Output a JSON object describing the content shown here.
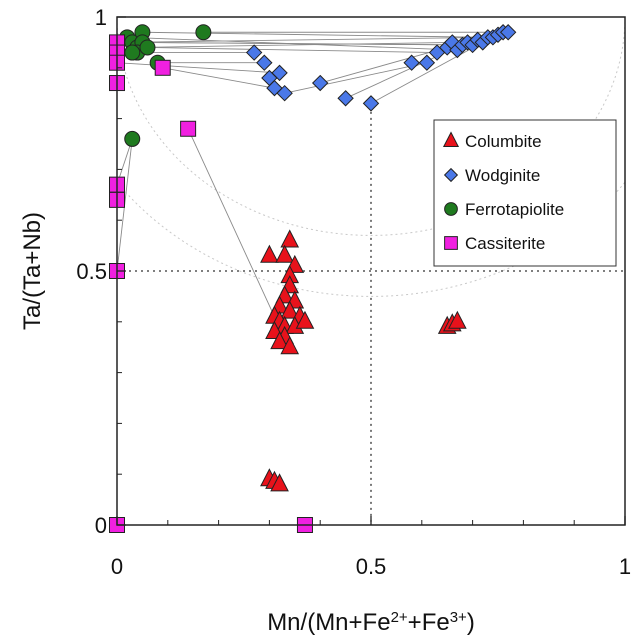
{
  "chart_data": {
    "type": "scatter",
    "xlabel": "Mn/(Mn+Fe2+Fe3+)",
    "xlabel_parts": {
      "base": "Mn/(Mn+Fe",
      "sup1": "2+",
      "mid": "+Fe",
      "sup2": "3+",
      "end": ")"
    },
    "ylabel": "Ta/(Ta+Nb)",
    "xlim": [
      0,
      1
    ],
    "ylim": [
      0,
      1
    ],
    "xticks": [
      {
        "value": 0,
        "label": "0"
      },
      {
        "value": 0.5,
        "label": "0.5"
      },
      {
        "value": 1,
        "label": "1"
      }
    ],
    "yticks": [
      {
        "value": 0,
        "label": "0"
      },
      {
        "value": 0.5,
        "label": "0.5"
      },
      {
        "value": 1,
        "label": "1"
      }
    ],
    "reference_lines": {
      "x": 0.5,
      "y": 0.5,
      "style": "dotted"
    },
    "legend_position": "right-upper",
    "legend": [
      {
        "name": "Columbite",
        "marker": "triangle",
        "color": "#e8121b"
      },
      {
        "name": "Wodginite",
        "marker": "diamond",
        "color": "#4a78e8"
      },
      {
        "name": "Ferrotapiolite",
        "marker": "circle",
        "color": "#1f7a1f"
      },
      {
        "name": "Cassiterite",
        "marker": "square",
        "color": "#f020e0"
      }
    ],
    "series": [
      {
        "name": "Columbite",
        "marker": "triangle",
        "color": "#e8121b",
        "points": [
          [
            0.3,
            0.53
          ],
          [
            0.34,
            0.56
          ],
          [
            0.33,
            0.53
          ],
          [
            0.35,
            0.51
          ],
          [
            0.34,
            0.49
          ],
          [
            0.34,
            0.47
          ],
          [
            0.33,
            0.45
          ],
          [
            0.35,
            0.44
          ],
          [
            0.32,
            0.43
          ],
          [
            0.31,
            0.41
          ],
          [
            0.34,
            0.42
          ],
          [
            0.36,
            0.41
          ],
          [
            0.32,
            0.4
          ],
          [
            0.33,
            0.39
          ],
          [
            0.35,
            0.39
          ],
          [
            0.37,
            0.4
          ],
          [
            0.31,
            0.38
          ],
          [
            0.33,
            0.37
          ],
          [
            0.32,
            0.36
          ],
          [
            0.34,
            0.35
          ],
          [
            0.3,
            0.09
          ],
          [
            0.31,
            0.085
          ],
          [
            0.32,
            0.08
          ],
          [
            0.65,
            0.39
          ],
          [
            0.66,
            0.395
          ],
          [
            0.67,
            0.4
          ]
        ]
      },
      {
        "name": "Wodginite",
        "marker": "diamond",
        "color": "#4a78e8",
        "points": [
          [
            0.27,
            0.93
          ],
          [
            0.29,
            0.91
          ],
          [
            0.3,
            0.88
          ],
          [
            0.32,
            0.89
          ],
          [
            0.31,
            0.86
          ],
          [
            0.33,
            0.85
          ],
          [
            0.4,
            0.87
          ],
          [
            0.45,
            0.84
          ],
          [
            0.5,
            0.83
          ],
          [
            0.58,
            0.91
          ],
          [
            0.61,
            0.91
          ],
          [
            0.63,
            0.93
          ],
          [
            0.65,
            0.94
          ],
          [
            0.66,
            0.95
          ],
          [
            0.67,
            0.935
          ],
          [
            0.68,
            0.945
          ],
          [
            0.69,
            0.95
          ],
          [
            0.7,
            0.945
          ],
          [
            0.71,
            0.955
          ],
          [
            0.72,
            0.95
          ],
          [
            0.73,
            0.96
          ],
          [
            0.74,
            0.96
          ],
          [
            0.75,
            0.965
          ],
          [
            0.76,
            0.97
          ],
          [
            0.77,
            0.97
          ]
        ]
      },
      {
        "name": "Ferrotapiolite",
        "marker": "circle",
        "color": "#1f7a1f",
        "points": [
          [
            0.02,
            0.96
          ],
          [
            0.03,
            0.95
          ],
          [
            0.04,
            0.94
          ],
          [
            0.05,
            0.97
          ],
          [
            0.05,
            0.95
          ],
          [
            0.04,
            0.93
          ],
          [
            0.03,
            0.93
          ],
          [
            0.06,
            0.94
          ],
          [
            0.17,
            0.97
          ],
          [
            0.08,
            0.91
          ],
          [
            0.03,
            0.76
          ]
        ]
      },
      {
        "name": "Cassiterite",
        "marker": "square",
        "color": "#f020e0",
        "points": [
          [
            0.0,
            0.95
          ],
          [
            0.0,
            0.93
          ],
          [
            0.0,
            0.91
          ],
          [
            0.0,
            0.87
          ],
          [
            0.09,
            0.9
          ],
          [
            0.14,
            0.78
          ],
          [
            0.0,
            0.67
          ],
          [
            0.0,
            0.64
          ],
          [
            0.0,
            0.5
          ],
          [
            0.0,
            0.0
          ],
          [
            0.37,
            0.0
          ]
        ]
      }
    ],
    "tie_lines": [
      [
        [
          0.02,
          0.96
        ],
        [
          0.67,
          0.935
        ]
      ],
      [
        [
          0.03,
          0.95
        ],
        [
          0.7,
          0.945
        ]
      ],
      [
        [
          0.05,
          0.97
        ],
        [
          0.73,
          0.96
        ]
      ],
      [
        [
          0.05,
          0.95
        ],
        [
          0.68,
          0.945
        ]
      ],
      [
        [
          0.04,
          0.94
        ],
        [
          0.66,
          0.95
        ]
      ],
      [
        [
          0.06,
          0.94
        ],
        [
          0.63,
          0.93
        ]
      ],
      [
        [
          0.17,
          0.97
        ],
        [
          0.77,
          0.97
        ]
      ],
      [
        [
          0.08,
          0.91
        ],
        [
          0.29,
          0.91
        ]
      ],
      [
        [
          0.0,
          0.95
        ],
        [
          0.74,
          0.96
        ]
      ],
      [
        [
          0.0,
          0.93
        ],
        [
          0.27,
          0.93
        ]
      ],
      [
        [
          0.0,
          0.91
        ],
        [
          0.32,
          0.89
        ]
      ],
      [
        [
          0.09,
          0.9
        ],
        [
          0.31,
          0.86
        ]
      ],
      [
        [
          0.33,
          0.85
        ],
        [
          0.61,
          0.91
        ]
      ],
      [
        [
          0.4,
          0.87
        ],
        [
          0.65,
          0.94
        ]
      ],
      [
        [
          0.45,
          0.84
        ],
        [
          0.69,
          0.95
        ]
      ],
      [
        [
          0.5,
          0.83
        ],
        [
          0.72,
          0.95
        ]
      ],
      [
        [
          0.14,
          0.78
        ],
        [
          0.31,
          0.41
        ]
      ],
      [
        [
          0.0,
          0.67
        ],
        [
          0.03,
          0.76
        ]
      ],
      [
        [
          0.0,
          0.5
        ],
        [
          0.03,
          0.76
        ]
      ]
    ]
  }
}
